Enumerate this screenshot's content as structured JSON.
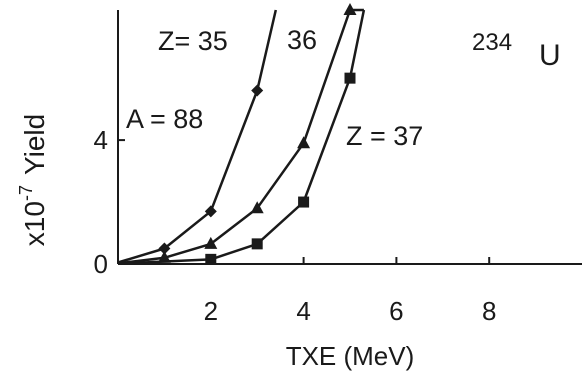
{
  "chart_data": {
    "type": "line",
    "title": "",
    "xlabel": "TXE (MeV)",
    "ylabel_prefix": "x10",
    "ylabel_exp": "-7",
    "ylabel_word": "Yield",
    "xlim": [
      0,
      10
    ],
    "ylim": [
      0,
      8.2
    ],
    "x_ticks": [
      2,
      4,
      6,
      8
    ],
    "y_ticks": [
      0,
      4
    ],
    "nucleus_mass": "234",
    "nucleus_symbol": "U",
    "annotations": {
      "z35": "Z= 35",
      "z36": "36",
      "z37": "Z = 37",
      "a88": "A = 88"
    },
    "series": [
      {
        "marker": "diamond",
        "x": [
          0,
          1,
          2,
          3,
          3.4
        ],
        "y": [
          0.05,
          0.5,
          1.7,
          5.6,
          8.2
        ]
      },
      {
        "marker": "triangle",
        "x": [
          0,
          1,
          2,
          3,
          4,
          5,
          5.3
        ],
        "y": [
          0.02,
          0.2,
          0.65,
          1.8,
          3.9,
          8.2,
          8.2
        ]
      },
      {
        "marker": "square",
        "x": [
          0,
          2,
          3,
          4,
          5,
          5.3
        ],
        "y": [
          0.01,
          0.15,
          0.65,
          2.0,
          6.0,
          8.2
        ]
      }
    ]
  }
}
